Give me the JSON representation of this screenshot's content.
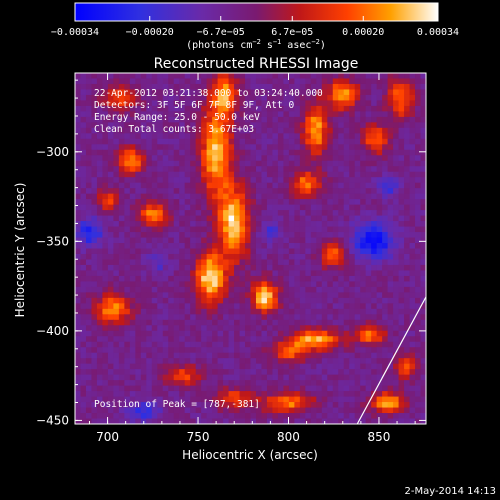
{
  "chart_data": {
    "type": "heatmap",
    "title": "Reconstructed RHESSI Image",
    "xlabel": "Heliocentric X (arcsec)",
    "ylabel": "Heliocentric Y (arcsec)",
    "xlim": [
      682,
      876
    ],
    "ylim": [
      -452,
      -256
    ],
    "x_ticks": [
      700,
      750,
      800,
      850
    ],
    "y_ticks": [
      -300,
      -350,
      -400,
      -450
    ],
    "x_tick_labels": [
      "700",
      "750",
      "800",
      "850"
    ],
    "y_tick_labels": [
      "−300",
      "−350",
      "−400",
      "−450"
    ],
    "colorbar": {
      "min": -0.00034,
      "max": 0.00034,
      "tick_labels": [
        "−0.00034",
        "−0.00020",
        "−6.7e−05",
        "6.7e−05",
        "0.00020",
        "0.00034"
      ],
      "units_prefix": "(photons cm",
      "units_sup1": "−2",
      "units_mid1": " s",
      "units_sup2": "−1",
      "units_mid2": " asec",
      "units_sup3": "−2",
      "units_suffix": ")"
    },
    "annotations": {
      "time_range": "22-Apr-2012 03:21:38.000 to 03:24:40.000",
      "detectors": "Detectors: 3F 5F 6F 7F 8F 9F, Att 0",
      "energy": "Energy Range: 25.0 - 50.0 keV",
      "clean": "Clean    Total counts: 3.67E+03",
      "peak": "Position of Peak = [787,-381]"
    },
    "peak": [
      787,
      -381
    ],
    "limb_line": [
      [
        838,
        -452
      ],
      [
        876,
        -381
      ]
    ],
    "bright_sources": [
      {
        "x": 757,
        "y": -370,
        "sx": 6,
        "sy": 10,
        "a": 1.0
      },
      {
        "x": 770,
        "y": -340,
        "sx": 6,
        "sy": 14,
        "a": 0.95
      },
      {
        "x": 787,
        "y": -381,
        "sx": 5,
        "sy": 6,
        "a": 1.0
      },
      {
        "x": 760,
        "y": -300,
        "sx": 6,
        "sy": 18,
        "a": 0.9
      },
      {
        "x": 765,
        "y": -268,
        "sx": 5,
        "sy": 8,
        "a": 0.75
      },
      {
        "x": 707,
        "y": -270,
        "sx": 7,
        "sy": 5,
        "a": 0.6
      },
      {
        "x": 713,
        "y": -305,
        "sx": 5,
        "sy": 5,
        "a": 0.8
      },
      {
        "x": 700,
        "y": -327,
        "sx": 4,
        "sy": 4,
        "a": 0.6
      },
      {
        "x": 725,
        "y": -335,
        "sx": 6,
        "sy": 5,
        "a": 0.7
      },
      {
        "x": 703,
        "y": -388,
        "sx": 7,
        "sy": 6,
        "a": 0.75
      },
      {
        "x": 810,
        "y": -318,
        "sx": 6,
        "sy": 5,
        "a": 0.7
      },
      {
        "x": 815,
        "y": -288,
        "sx": 5,
        "sy": 10,
        "a": 0.8
      },
      {
        "x": 830,
        "y": -268,
        "sx": 6,
        "sy": 6,
        "a": 0.8
      },
      {
        "x": 848,
        "y": -293,
        "sx": 5,
        "sy": 6,
        "a": 0.65
      },
      {
        "x": 862,
        "y": -270,
        "sx": 5,
        "sy": 8,
        "a": 0.7
      },
      {
        "x": 825,
        "y": -358,
        "sx": 5,
        "sy": 5,
        "a": 0.65
      },
      {
        "x": 815,
        "y": -405,
        "sx": 10,
        "sy": 4,
        "a": 0.85
      },
      {
        "x": 800,
        "y": -412,
        "sx": 7,
        "sy": 4,
        "a": 0.6
      },
      {
        "x": 845,
        "y": -402,
        "sx": 6,
        "sy": 4,
        "a": 0.7
      },
      {
        "x": 800,
        "y": -440,
        "sx": 10,
        "sy": 4,
        "a": 0.7
      },
      {
        "x": 770,
        "y": -438,
        "sx": 8,
        "sy": 4,
        "a": 0.55
      },
      {
        "x": 742,
        "y": -425,
        "sx": 7,
        "sy": 4,
        "a": 0.55
      },
      {
        "x": 855,
        "y": -440,
        "sx": 7,
        "sy": 4,
        "a": 0.8
      },
      {
        "x": 865,
        "y": -420,
        "sx": 4,
        "sy": 5,
        "a": 0.55
      }
    ],
    "dark_sources": [
      {
        "x": 847,
        "y": -350,
        "sx": 8,
        "sy": 7,
        "a": -0.75
      },
      {
        "x": 690,
        "y": -345,
        "sx": 5,
        "sy": 5,
        "a": -0.6
      },
      {
        "x": 720,
        "y": -445,
        "sx": 6,
        "sy": 4,
        "a": -0.45
      },
      {
        "x": 855,
        "y": -320,
        "sx": 4,
        "sy": 4,
        "a": -0.45
      },
      {
        "x": 790,
        "y": -345,
        "sx": 4,
        "sy": 4,
        "a": -0.35
      },
      {
        "x": 728,
        "y": -362,
        "sx": 4,
        "sy": 4,
        "a": -0.3
      }
    ]
  },
  "footer": {
    "date": "2-May-2014 14:13"
  },
  "colors": {
    "background": "#000000",
    "baseline": "#5a2a8c"
  }
}
